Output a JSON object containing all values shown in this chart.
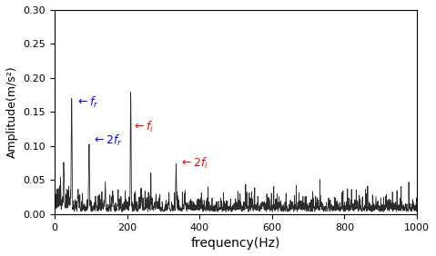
{
  "title": "",
  "xlabel": "frequency(Hz)",
  "ylabel": "Amplitude(m/s²)",
  "xlim": [
    0,
    1000
  ],
  "ylim": [
    0,
    0.3
  ],
  "yticks": [
    0,
    0.05,
    0.1,
    0.15,
    0.2,
    0.25,
    0.3
  ],
  "xticks": [
    0,
    200,
    400,
    600,
    800,
    1000
  ],
  "peaks": {
    "fr": {
      "freq": 47,
      "amp": 0.155
    },
    "fi": {
      "freq": 210,
      "amp": 0.168
    },
    "2fr": {
      "freq": 95,
      "amp": 0.096
    },
    "2fi": {
      "freq": 335,
      "amp": 0.065
    }
  },
  "line_color": "#2b2b2b",
  "background": "#ffffff",
  "seed": 42
}
